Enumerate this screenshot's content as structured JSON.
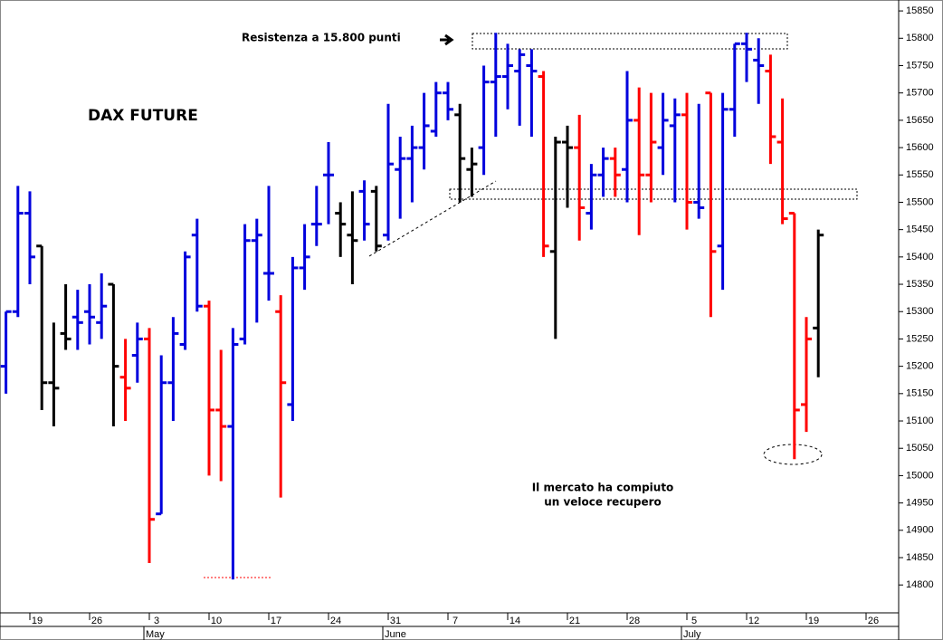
{
  "chart_data": {
    "type": "ohlc",
    "title": "DAX FUTURE",
    "annotations": [
      "Resistenza a 15.800 punti",
      "Il mercato ha compiuto",
      "un veloce recupero"
    ],
    "categories": [
      null,
      null,
      "19",
      null,
      null,
      null,
      null,
      "26",
      null,
      null,
      null,
      null,
      "3",
      null,
      null,
      null,
      null,
      "10",
      null,
      null,
      null,
      null,
      "17",
      null,
      null,
      null,
      null,
      "24",
      null,
      null,
      null,
      null,
      "31",
      null,
      null,
      null,
      null,
      "7",
      null,
      null,
      null,
      null,
      "14",
      null,
      null,
      null,
      null,
      "21",
      null,
      null,
      null,
      null,
      "28",
      null,
      null,
      null,
      null,
      "5",
      null,
      null,
      null,
      null,
      "12",
      null,
      null,
      null,
      null,
      "19",
      null,
      null,
      null,
      null,
      "26",
      null,
      null,
      null
    ],
    "month_labels": [
      {
        "label": "May",
        "category": 12
      },
      {
        "label": "June",
        "category": 32
      },
      {
        "label": "July",
        "category": 57
      }
    ],
    "open": [
      15200,
      15300,
      15480,
      15420,
      15170,
      15260,
      15290,
      15300,
      15280,
      15350,
      15180,
      15220,
      15250,
      14930,
      15170,
      15240,
      15440,
      15310,
      15120,
      15090,
      15250,
      15430,
      15370,
      15300,
      15130,
      15380,
      15460,
      15550,
      15480,
      15440,
      15520,
      15520,
      15440,
      15560,
      15580,
      15600,
      15630,
      15700,
      15660,
      15560,
      15600,
      15720,
      15730,
      15740,
      15750,
      15730,
      15410,
      15610,
      15600,
      15480,
      15550,
      15580,
      15560,
      15650,
      15550,
      15600,
      15640,
      15660,
      15500,
      15700,
      15420,
      15670,
      15790,
      15760,
      15740,
      15610,
      15480,
      15130,
      15270,
      null,
      null,
      null,
      null,
      null,
      null,
      null
    ],
    "high": [
      15300,
      15530,
      15520,
      15420,
      15280,
      15350,
      15340,
      15350,
      15370,
      15350,
      15250,
      15280,
      15270,
      15220,
      15290,
      15410,
      15470,
      15320,
      15230,
      15270,
      15460,
      15470,
      15530,
      15330,
      15400,
      15460,
      15530,
      15610,
      15500,
      15520,
      15540,
      15530,
      15680,
      15620,
      15640,
      15700,
      15720,
      15720,
      15680,
      15600,
      15750,
      15810,
      15790,
      15780,
      15780,
      15740,
      15620,
      15640,
      15660,
      15570,
      15600,
      15600,
      15740,
      15710,
      15700,
      15700,
      15690,
      15700,
      15680,
      15700,
      15700,
      15790,
      15810,
      15800,
      15770,
      15690,
      15480,
      15290,
      15450,
      null,
      null,
      null,
      null,
      null,
      null,
      null
    ],
    "low": [
      15150,
      15290,
      15350,
      15120,
      15090,
      15230,
      15230,
      15240,
      15250,
      15090,
      15100,
      15170,
      14840,
      14930,
      15100,
      15230,
      15300,
      15000,
      14990,
      14810,
      15240,
      15280,
      15320,
      14960,
      15100,
      15340,
      15420,
      15460,
      15400,
      15350,
      15430,
      15410,
      15430,
      15470,
      15500,
      15560,
      15620,
      15650,
      15500,
      15510,
      15550,
      15620,
      15670,
      15640,
      15620,
      15400,
      15250,
      15490,
      15430,
      15450,
      15510,
      15510,
      15500,
      15440,
      15500,
      15550,
      15500,
      15450,
      15470,
      15290,
      15340,
      15620,
      15720,
      15680,
      15570,
      15460,
      15030,
      15080,
      15180,
      null,
      null,
      null,
      null,
      null,
      null,
      null
    ],
    "close": [
      15300,
      15480,
      15400,
      15170,
      15160,
      15250,
      15280,
      15290,
      15310,
      15200,
      15160,
      15250,
      14920,
      15170,
      15260,
      15400,
      15310,
      15120,
      15090,
      15240,
      15430,
      15440,
      15370,
      15170,
      15380,
      15400,
      15460,
      15550,
      15460,
      15430,
      15460,
      15420,
      15570,
      15580,
      15600,
      15640,
      15700,
      15670,
      15580,
      15570,
      15720,
      15730,
      15750,
      15770,
      15740,
      15420,
      15610,
      15600,
      15490,
      15550,
      15580,
      15550,
      15650,
      15550,
      15610,
      15650,
      15660,
      15500,
      15490,
      15410,
      15670,
      15790,
      15780,
      15750,
      15620,
      15470,
      15120,
      15250,
      15440,
      null,
      null,
      null,
      null,
      null,
      null,
      null
    ],
    "colors": [
      "#0000dd",
      "#0000dd",
      "#0000dd",
      "#000000",
      "#000000",
      "#000000",
      "#0000dd",
      "#0000dd",
      "#0000dd",
      "#000000",
      "#ff0000",
      "#0000dd",
      "#ff0000",
      "#0000dd",
      "#0000dd",
      "#0000dd",
      "#0000dd",
      "#ff0000",
      "#ff0000",
      "#0000dd",
      "#0000dd",
      "#0000dd",
      "#0000dd",
      "#ff0000",
      "#0000dd",
      "#0000dd",
      "#0000dd",
      "#0000dd",
      "#000000",
      "#000000",
      "#0000dd",
      "#000000",
      "#0000dd",
      "#0000dd",
      "#0000dd",
      "#0000dd",
      "#0000dd",
      "#0000dd",
      "#000000",
      "#000000",
      "#0000dd",
      "#0000dd",
      "#0000dd",
      "#0000dd",
      "#0000dd",
      "#ff0000",
      "#000000",
      "#000000",
      "#ff0000",
      "#0000dd",
      "#0000dd",
      "#ff0000",
      "#0000dd",
      "#ff0000",
      "#ff0000",
      "#0000dd",
      "#0000dd",
      "#ff0000",
      "#0000dd",
      "#ff0000",
      "#0000dd",
      "#0000dd",
      "#0000dd",
      "#0000dd",
      "#ff0000",
      "#ff0000",
      "#ff0000",
      "#ff0000",
      "#000000",
      null,
      null,
      null,
      null,
      null,
      null,
      null
    ],
    "ylim": [
      14749,
      15870
    ],
    "yticks": [
      14800,
      14850,
      14900,
      14950,
      15000,
      15050,
      15100,
      15150,
      15200,
      15250,
      15300,
      15350,
      15400,
      15450,
      15500,
      15550,
      15600,
      15650,
      15700,
      15750,
      15800,
      15850
    ],
    "grid": false
  }
}
